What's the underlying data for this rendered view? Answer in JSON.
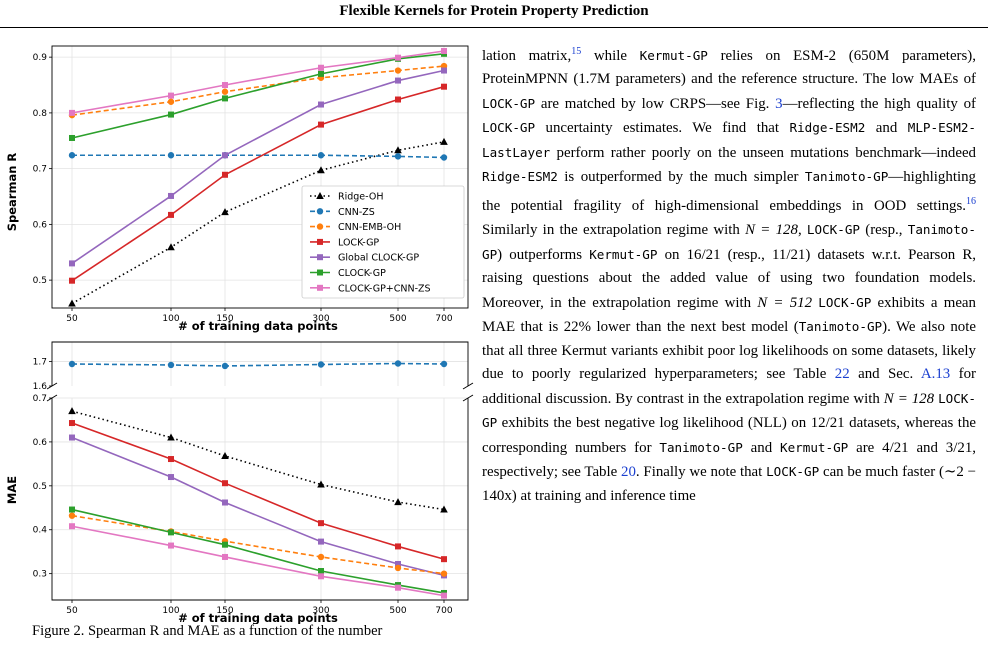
{
  "header": {
    "title": "Flexible Kernels for Protein Property Prediction"
  },
  "legend": [
    "Ridge-OH",
    "CNN-ZS",
    "CNN-EMB-OH",
    "LOCK-GP",
    "Global CLOCK-GP",
    "CLOCK-GP",
    "CLOCK-GP+CNN-ZS"
  ],
  "chart_data": [
    {
      "type": "line",
      "x_ticks": [
        "50",
        "100",
        "150",
        "300",
        "500",
        "700"
      ],
      "x": [
        50,
        100,
        150,
        300,
        500,
        700
      ],
      "xlabel": "# of training data points",
      "ylabel": "Spearman R",
      "ylim": [
        0.45,
        0.92
      ],
      "yticks": [
        "0.5",
        "0.6",
        "0.7",
        "0.8",
        "0.9"
      ],
      "legend_position": "lower-right",
      "series": [
        {
          "name": "Ridge-OH",
          "color": "#000000",
          "style": "dotted",
          "marker": "triangle",
          "values": [
            0.458,
            0.559,
            0.622,
            0.697,
            0.733,
            0.748
          ]
        },
        {
          "name": "CNN-ZS",
          "color": "#1f77b4",
          "style": "dashed",
          "marker": "circle",
          "values": [
            0.724,
            0.724,
            0.724,
            0.724,
            0.722,
            0.72
          ]
        },
        {
          "name": "CNN-EMB-OH",
          "color": "#ff7f0e",
          "style": "dashed",
          "marker": "circle",
          "values": [
            0.796,
            0.82,
            0.838,
            0.863,
            0.876,
            0.884
          ]
        },
        {
          "name": "LOCK-GP",
          "color": "#d62728",
          "style": "solid",
          "marker": "square",
          "values": [
            0.499,
            0.617,
            0.689,
            0.779,
            0.824,
            0.847
          ]
        },
        {
          "name": "Global CLOCK-GP",
          "color": "#9467bd",
          "style": "solid",
          "marker": "square",
          "values": [
            0.53,
            0.651,
            0.724,
            0.815,
            0.858,
            0.876
          ]
        },
        {
          "name": "CLOCK-GP",
          "color": "#2ca02c",
          "style": "solid",
          "marker": "square",
          "values": [
            0.755,
            0.797,
            0.826,
            0.87,
            0.897,
            0.906
          ]
        },
        {
          "name": "CLOCK-GP+CNN-ZS",
          "color": "#e377c2",
          "style": "solid",
          "marker": "square",
          "values": [
            0.8,
            0.831,
            0.85,
            0.881,
            0.899,
            0.911
          ]
        }
      ]
    },
    {
      "type": "line",
      "x_ticks": [
        "50",
        "100",
        "150",
        "300",
        "500",
        "700"
      ],
      "x": [
        50,
        100,
        150,
        300,
        500,
        700
      ],
      "xlabel": "# of training data points",
      "ylabel": "MAE",
      "broken_axis": true,
      "upper_ylim": [
        1.6,
        1.78
      ],
      "upper_yticks": [
        "1.6",
        "1.7"
      ],
      "lower_ylim": [
        0.24,
        0.7
      ],
      "lower_yticks": [
        "0.7",
        "0.6",
        "0.5",
        "0.4",
        "0.3"
      ],
      "series": [
        {
          "name": "CNN-ZS",
          "color": "#1f77b4",
          "style": "dashed",
          "marker": "circle",
          "values": [
            1.69,
            1.686,
            1.682,
            1.688,
            1.692,
            1.69
          ]
        },
        {
          "name": "Ridge-OH",
          "color": "#000000",
          "style": "dotted",
          "marker": "triangle",
          "values": [
            0.67,
            0.61,
            0.568,
            0.503,
            0.463,
            0.446
          ]
        },
        {
          "name": "LOCK-GP",
          "color": "#d62728",
          "style": "solid",
          "marker": "square",
          "values": [
            0.643,
            0.561,
            0.506,
            0.415,
            0.362,
            0.333
          ]
        },
        {
          "name": "Global CLOCK-GP",
          "color": "#9467bd",
          "style": "solid",
          "marker": "square",
          "values": [
            0.61,
            0.52,
            0.462,
            0.373,
            0.322,
            0.296
          ]
        },
        {
          "name": "CNN-EMB-OH",
          "color": "#ff7f0e",
          "style": "dashed",
          "marker": "circle",
          "values": [
            0.432,
            0.396,
            0.374,
            0.338,
            0.313,
            0.3
          ]
        },
        {
          "name": "CLOCK-GP",
          "color": "#2ca02c",
          "style": "solid",
          "marker": "square",
          "values": [
            0.446,
            0.394,
            0.366,
            0.306,
            0.274,
            0.256
          ]
        },
        {
          "name": "CLOCK-GP+CNN-ZS",
          "color": "#e377c2",
          "style": "solid",
          "marker": "square",
          "values": [
            0.408,
            0.364,
            0.338,
            0.294,
            0.268,
            0.25
          ]
        }
      ]
    }
  ],
  "body": {
    "p1": "lation matrix,",
    "p1_ref": "15",
    "p2": " while ",
    "m_kermut1": "Kermut-GP",
    "p3": " relies on ESM-2 (650M parameters), ProteinMPNN (1.7M parameters) and the reference structure. The low MAEs of ",
    "m_lock1": "LOCK-GP",
    "p4": " are matched by low CRPS—see Fig. ",
    "fig_ref": "3",
    "p5": "—reflecting the high quality of ",
    "m_lock2": "LOCK-GP",
    "p6": " uncertainty estimates. We find that ",
    "m_ridge1": "Ridge-ESM2",
    "p7": " and ",
    "m_mlp": "MLP-ESM2-LastLayer",
    "p8": " perform rather poorly on the unseen mutations benchmark—indeed ",
    "m_ridge2": "Ridge-ESM2",
    "p9": " is outperformed by the much simpler ",
    "m_tan1": "Tanimoto-GP",
    "p10": "—highlighting the potential fragility of high-dimensional embeddings in OOD settings.",
    "p10_ref": "16",
    "p11": " Similarly in the extrapolation regime with ",
    "math_n128a": "N = 128",
    "p12": ", ",
    "m_lock3": "LOCK-GP",
    "p13": " (resp., ",
    "m_tan2": "Tanimoto-GP",
    "p14": ") outperforms ",
    "m_kermut2": "Kermut-GP",
    "p15": " on 16/21 (resp., 11/21) datasets w.r.t. Pearson R, raising questions about the added value of using two foundation models. Moreover, in the extrapolation regime with ",
    "math_n512": "N = 512",
    "p16": " ",
    "m_lock4": "LOCK-GP",
    "p17": " exhibits a mean MAE that is 22% lower than the next best model (",
    "m_tan3": "Tanimoto-GP",
    "p18": "). We also note that all three Kermut variants exhibit poor log likelihoods on some datasets, likely due to poorly regularized hyperparameters; see Table ",
    "table_ref1": "22",
    "p19": " and Sec. ",
    "sec_ref": "A.13",
    "p20": " for additional discussion. By contrast in the extrapolation regime with ",
    "math_n128b": "N = 128",
    "p21": " ",
    "m_lock5": "LOCK-GP",
    "p22": " exhibits the best negative log likelihood (NLL) on 12/21 datasets, whereas the corresponding numbers for ",
    "m_tan4": "Tanimoto-GP",
    "p23": " and ",
    "m_kermut3": "Kermut-GP",
    "p24": " are 4/21 and 3/21, respectively; see Table ",
    "table_ref2": "20",
    "p25": ". Finally we note that ",
    "m_lock6": "LOCK-GP",
    "p26": " can be much faster (∼2 − 140x) at training and inference time"
  },
  "caption": "Figure 2. Spearman R and MAE as a function of the number"
}
